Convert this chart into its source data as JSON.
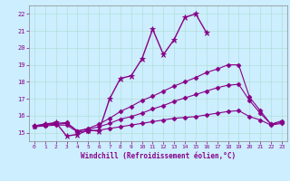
{
  "xlabel": "Windchill (Refroidissement éolien,°C)",
  "bg_color": "#cceeff",
  "line_color": "#880088",
  "xlim": [
    -0.5,
    23.5
  ],
  "ylim": [
    14.5,
    22.5
  ],
  "xticks": [
    0,
    1,
    2,
    3,
    4,
    5,
    6,
    7,
    8,
    9,
    10,
    11,
    12,
    13,
    14,
    15,
    16,
    17,
    18,
    19,
    20,
    21,
    22,
    23
  ],
  "yticks": [
    15,
    16,
    17,
    18,
    19,
    20,
    21,
    22
  ],
  "series": [
    {
      "x": [
        0,
        1,
        2,
        3,
        4,
        5,
        6,
        7,
        8,
        9,
        10,
        11,
        12,
        13,
        14,
        15,
        16
      ],
      "y": [
        15.4,
        15.5,
        15.6,
        14.8,
        14.9,
        15.15,
        15.1,
        17.0,
        18.2,
        18.35,
        19.35,
        21.1,
        19.6,
        20.5,
        21.8,
        22.0,
        20.9
      ],
      "marker": "*",
      "markersize": 4.5,
      "lw": 1.0
    },
    {
      "x": [
        0,
        1,
        2,
        3,
        4,
        5,
        6,
        7,
        8,
        9,
        10,
        11,
        12,
        13,
        14,
        15,
        16,
        17,
        18,
        19,
        20,
        21,
        22,
        23
      ],
      "y": [
        15.4,
        15.5,
        15.55,
        15.6,
        15.1,
        15.25,
        15.5,
        15.85,
        16.25,
        16.55,
        16.9,
        17.15,
        17.45,
        17.75,
        18.0,
        18.25,
        18.55,
        18.75,
        19.0,
        19.0,
        17.1,
        16.3,
        15.5,
        15.7
      ],
      "marker": "D",
      "markersize": 2.5,
      "lw": 0.8
    },
    {
      "x": [
        0,
        1,
        2,
        3,
        4,
        5,
        6,
        7,
        8,
        9,
        10,
        11,
        12,
        13,
        14,
        15,
        16,
        17,
        18,
        19,
        20,
        21,
        22,
        23
      ],
      "y": [
        15.4,
        15.45,
        15.5,
        15.55,
        15.1,
        15.2,
        15.35,
        15.55,
        15.8,
        15.95,
        16.15,
        16.4,
        16.6,
        16.85,
        17.05,
        17.25,
        17.45,
        17.65,
        17.8,
        17.85,
        16.9,
        16.15,
        15.5,
        15.6
      ],
      "marker": "D",
      "markersize": 2.5,
      "lw": 0.8
    },
    {
      "x": [
        0,
        1,
        2,
        3,
        4,
        5,
        6,
        7,
        8,
        9,
        10,
        11,
        12,
        13,
        14,
        15,
        16,
        17,
        18,
        19,
        20,
        21,
        22,
        23
      ],
      "y": [
        15.35,
        15.4,
        15.45,
        15.45,
        15.05,
        15.1,
        15.15,
        15.25,
        15.35,
        15.45,
        15.55,
        15.65,
        15.75,
        15.85,
        15.9,
        15.95,
        16.05,
        16.15,
        16.25,
        16.3,
        15.95,
        15.75,
        15.45,
        15.55
      ],
      "marker": "D",
      "markersize": 2.5,
      "lw": 0.8
    }
  ]
}
